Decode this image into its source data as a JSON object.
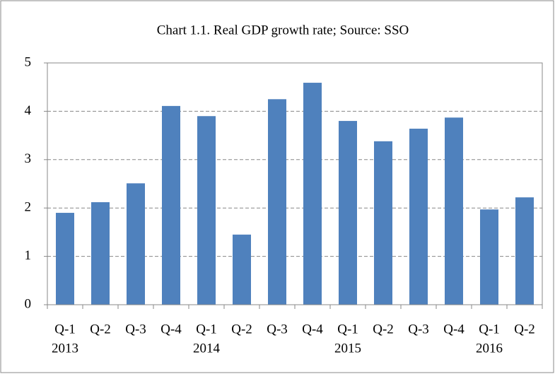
{
  "chart_data": {
    "type": "bar",
    "title": "Chart 1.1. Real GDP growth rate; Source:  SSO",
    "categories": [
      "Q-1",
      "Q-2",
      "Q-3",
      "Q-4",
      "Q-1",
      "Q-2",
      "Q-3",
      "Q-4",
      "Q-1",
      "Q-2",
      "Q-3",
      "Q-4",
      "Q-1",
      "Q-2"
    ],
    "years": [
      "2013",
      null,
      null,
      null,
      "2014",
      null,
      null,
      null,
      "2015",
      null,
      null,
      null,
      "2016",
      null
    ],
    "values": [
      1.9,
      2.12,
      2.51,
      4.11,
      3.9,
      1.45,
      4.25,
      4.59,
      3.8,
      3.38,
      3.64,
      3.87,
      1.97,
      2.22
    ],
    "color": "#4f81bd",
    "ylim": [
      0,
      5
    ],
    "yticks": [
      0,
      1,
      2,
      3,
      4,
      5
    ],
    "grid": true
  }
}
